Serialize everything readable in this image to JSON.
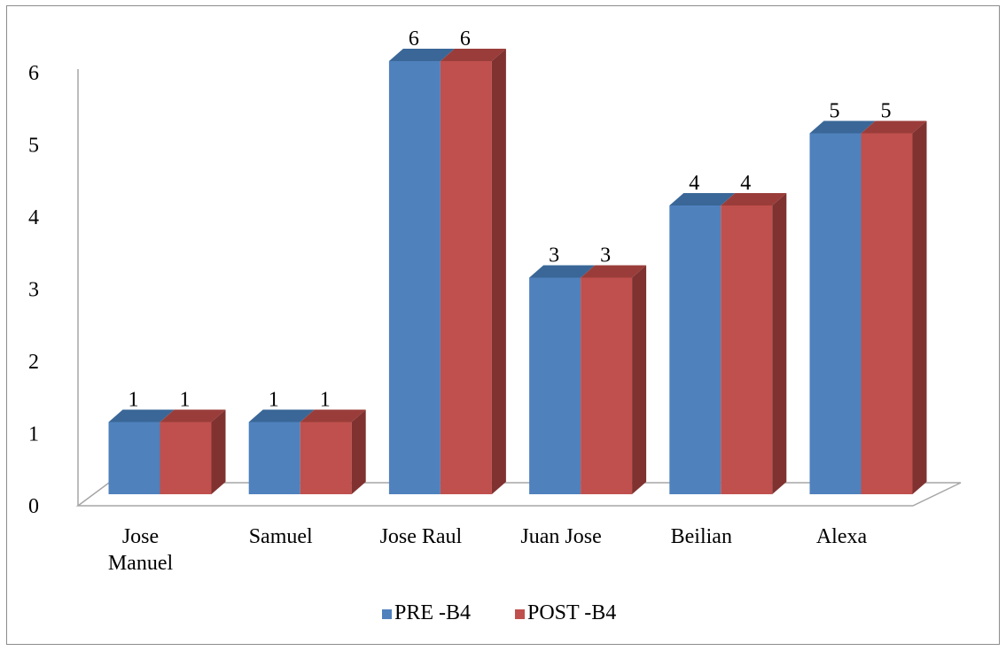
{
  "chart_data": {
    "type": "bar",
    "style": "3d-clustered-column",
    "categories": [
      [
        "Jose",
        "Manuel"
      ],
      [
        "Samuel"
      ],
      [
        "Jose Raul"
      ],
      [
        "Juan Jose"
      ],
      [
        "Beilian"
      ],
      [
        "Alexa"
      ]
    ],
    "series": [
      {
        "name": "PRE -B4",
        "values": [
          1,
          1,
          6,
          3,
          4,
          5
        ],
        "color": "#4f81bd",
        "top_color": "#3a6797",
        "side_color": "#385d8a"
      },
      {
        "name": "POST -B4",
        "values": [
          1,
          1,
          6,
          3,
          4,
          5
        ],
        "color": "#c0504d",
        "top_color": "#9a3d3a",
        "side_color": "#7f3230"
      }
    ],
    "data_labels": true,
    "y_ticks": [
      "0",
      "1",
      "2",
      "3",
      "4",
      "5",
      "6"
    ],
    "ylim": [
      0,
      6
    ],
    "title": "",
    "xlabel": "",
    "ylabel": "",
    "grid": false,
    "legend": "bottom"
  }
}
